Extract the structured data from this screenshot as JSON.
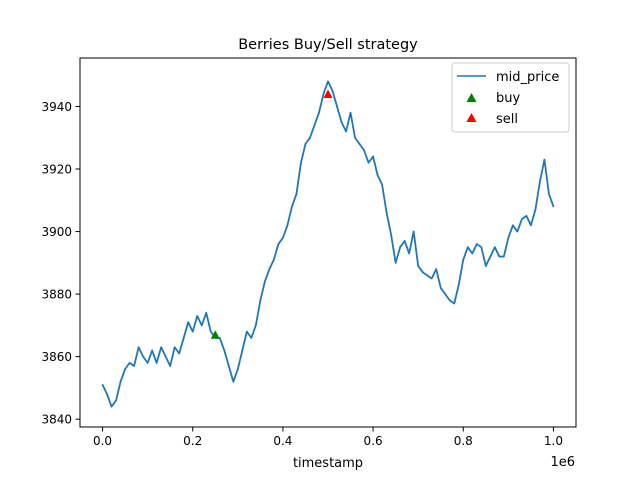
{
  "chart_data": {
    "type": "line",
    "title": "Berries Buy/Sell strategy",
    "xlabel": "timestamp",
    "ylabel": "",
    "x_offset_label": "1e6",
    "xlim": [
      -0.05,
      1.05
    ],
    "ylim": [
      3837.5,
      3955.5
    ],
    "x_ticks": [
      0.0,
      0.2,
      0.4,
      0.6,
      0.8,
      1.0
    ],
    "x_tick_labels": [
      "0.0",
      "0.2",
      "0.4",
      "0.6",
      "0.8",
      "1.0"
    ],
    "y_ticks": [
      3840,
      3860,
      3880,
      3900,
      3920,
      3940
    ],
    "y_tick_labels": [
      "3840",
      "3860",
      "3880",
      "3900",
      "3920",
      "3940"
    ],
    "grid": false,
    "legend_position": "top-right",
    "series": [
      {
        "name": "mid_price",
        "kind": "line",
        "color": "#1f77b4",
        "x": [
          0.0,
          0.01,
          0.02,
          0.03,
          0.04,
          0.05,
          0.06,
          0.07,
          0.08,
          0.09,
          0.1,
          0.11,
          0.12,
          0.13,
          0.14,
          0.15,
          0.16,
          0.17,
          0.18,
          0.19,
          0.2,
          0.21,
          0.22,
          0.23,
          0.24,
          0.25,
          0.26,
          0.27,
          0.28,
          0.29,
          0.3,
          0.31,
          0.32,
          0.33,
          0.34,
          0.35,
          0.36,
          0.37,
          0.38,
          0.39,
          0.4,
          0.41,
          0.42,
          0.43,
          0.44,
          0.45,
          0.46,
          0.47,
          0.48,
          0.49,
          0.5,
          0.51,
          0.52,
          0.53,
          0.54,
          0.55,
          0.56,
          0.57,
          0.58,
          0.59,
          0.6,
          0.61,
          0.62,
          0.63,
          0.64,
          0.65,
          0.66,
          0.67,
          0.68,
          0.69,
          0.7,
          0.71,
          0.72,
          0.73,
          0.74,
          0.75,
          0.76,
          0.77,
          0.78,
          0.79,
          0.8,
          0.81,
          0.82,
          0.83,
          0.84,
          0.85,
          0.86,
          0.87,
          0.88,
          0.89,
          0.9,
          0.91,
          0.92,
          0.93,
          0.94,
          0.95,
          0.96,
          0.97,
          0.98,
          0.99,
          1.0
        ],
        "y": [
          3851,
          3848,
          3844,
          3846,
          3852,
          3856,
          3858,
          3857,
          3863,
          3860,
          3858,
          3862,
          3858,
          3863,
          3860,
          3857,
          3863,
          3861,
          3866,
          3871,
          3868,
          3873,
          3870,
          3874,
          3868,
          3866,
          3866,
          3862,
          3857,
          3852,
          3856,
          3862,
          3868,
          3866,
          3870,
          3878,
          3884,
          3888,
          3891,
          3896,
          3898,
          3902,
          3908,
          3912,
          3922,
          3928,
          3930,
          3934,
          3938,
          3944,
          3948,
          3945,
          3940,
          3935,
          3932,
          3938,
          3930,
          3928,
          3926,
          3922,
          3924,
          3918,
          3915,
          3906,
          3899,
          3890,
          3895,
          3897,
          3893,
          3900,
          3889,
          3887,
          3886,
          3885,
          3888,
          3882,
          3880,
          3878,
          3877,
          3883,
          3891,
          3895,
          3893,
          3896,
          3895,
          3889,
          3892,
          3895,
          3892,
          3892,
          3898,
          3902,
          3900,
          3904,
          3905,
          3902,
          3907,
          3916,
          3923,
          3912,
          3908
        ]
      },
      {
        "name": "buy",
        "kind": "marker",
        "marker": "triangle-up",
        "color": "#008000",
        "x": [
          0.25
        ],
        "y": [
          3867
        ]
      },
      {
        "name": "sell",
        "kind": "marker",
        "marker": "triangle-up",
        "color": "#ff0000",
        "x": [
          0.5
        ],
        "y": [
          3944
        ]
      }
    ]
  }
}
